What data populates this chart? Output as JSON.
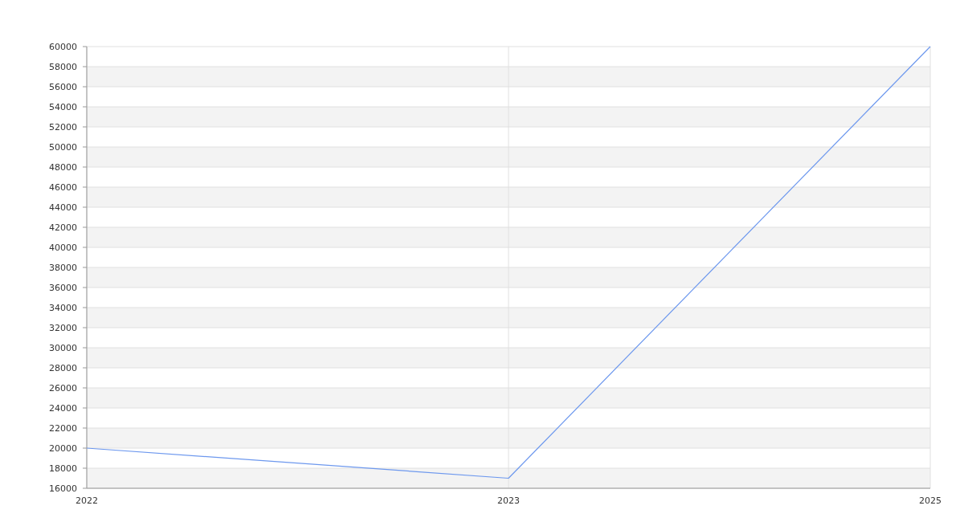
{
  "chart_data": {
    "type": "line",
    "categories": [
      "2022",
      "2023",
      "2025"
    ],
    "series": [
      {
        "color": "#6d98ee",
        "values": [
          20000,
          17000,
          60000
        ]
      }
    ],
    "ylim": [
      16000,
      60000
    ],
    "yticks": [
      16000,
      18000,
      20000,
      22000,
      24000,
      26000,
      28000,
      30000,
      32000,
      34000,
      36000,
      38000,
      40000,
      42000,
      44000,
      46000,
      48000,
      50000,
      52000,
      54000,
      56000,
      58000,
      60000
    ],
    "grid": true,
    "marker": "none",
    "line_style": "solid"
  }
}
